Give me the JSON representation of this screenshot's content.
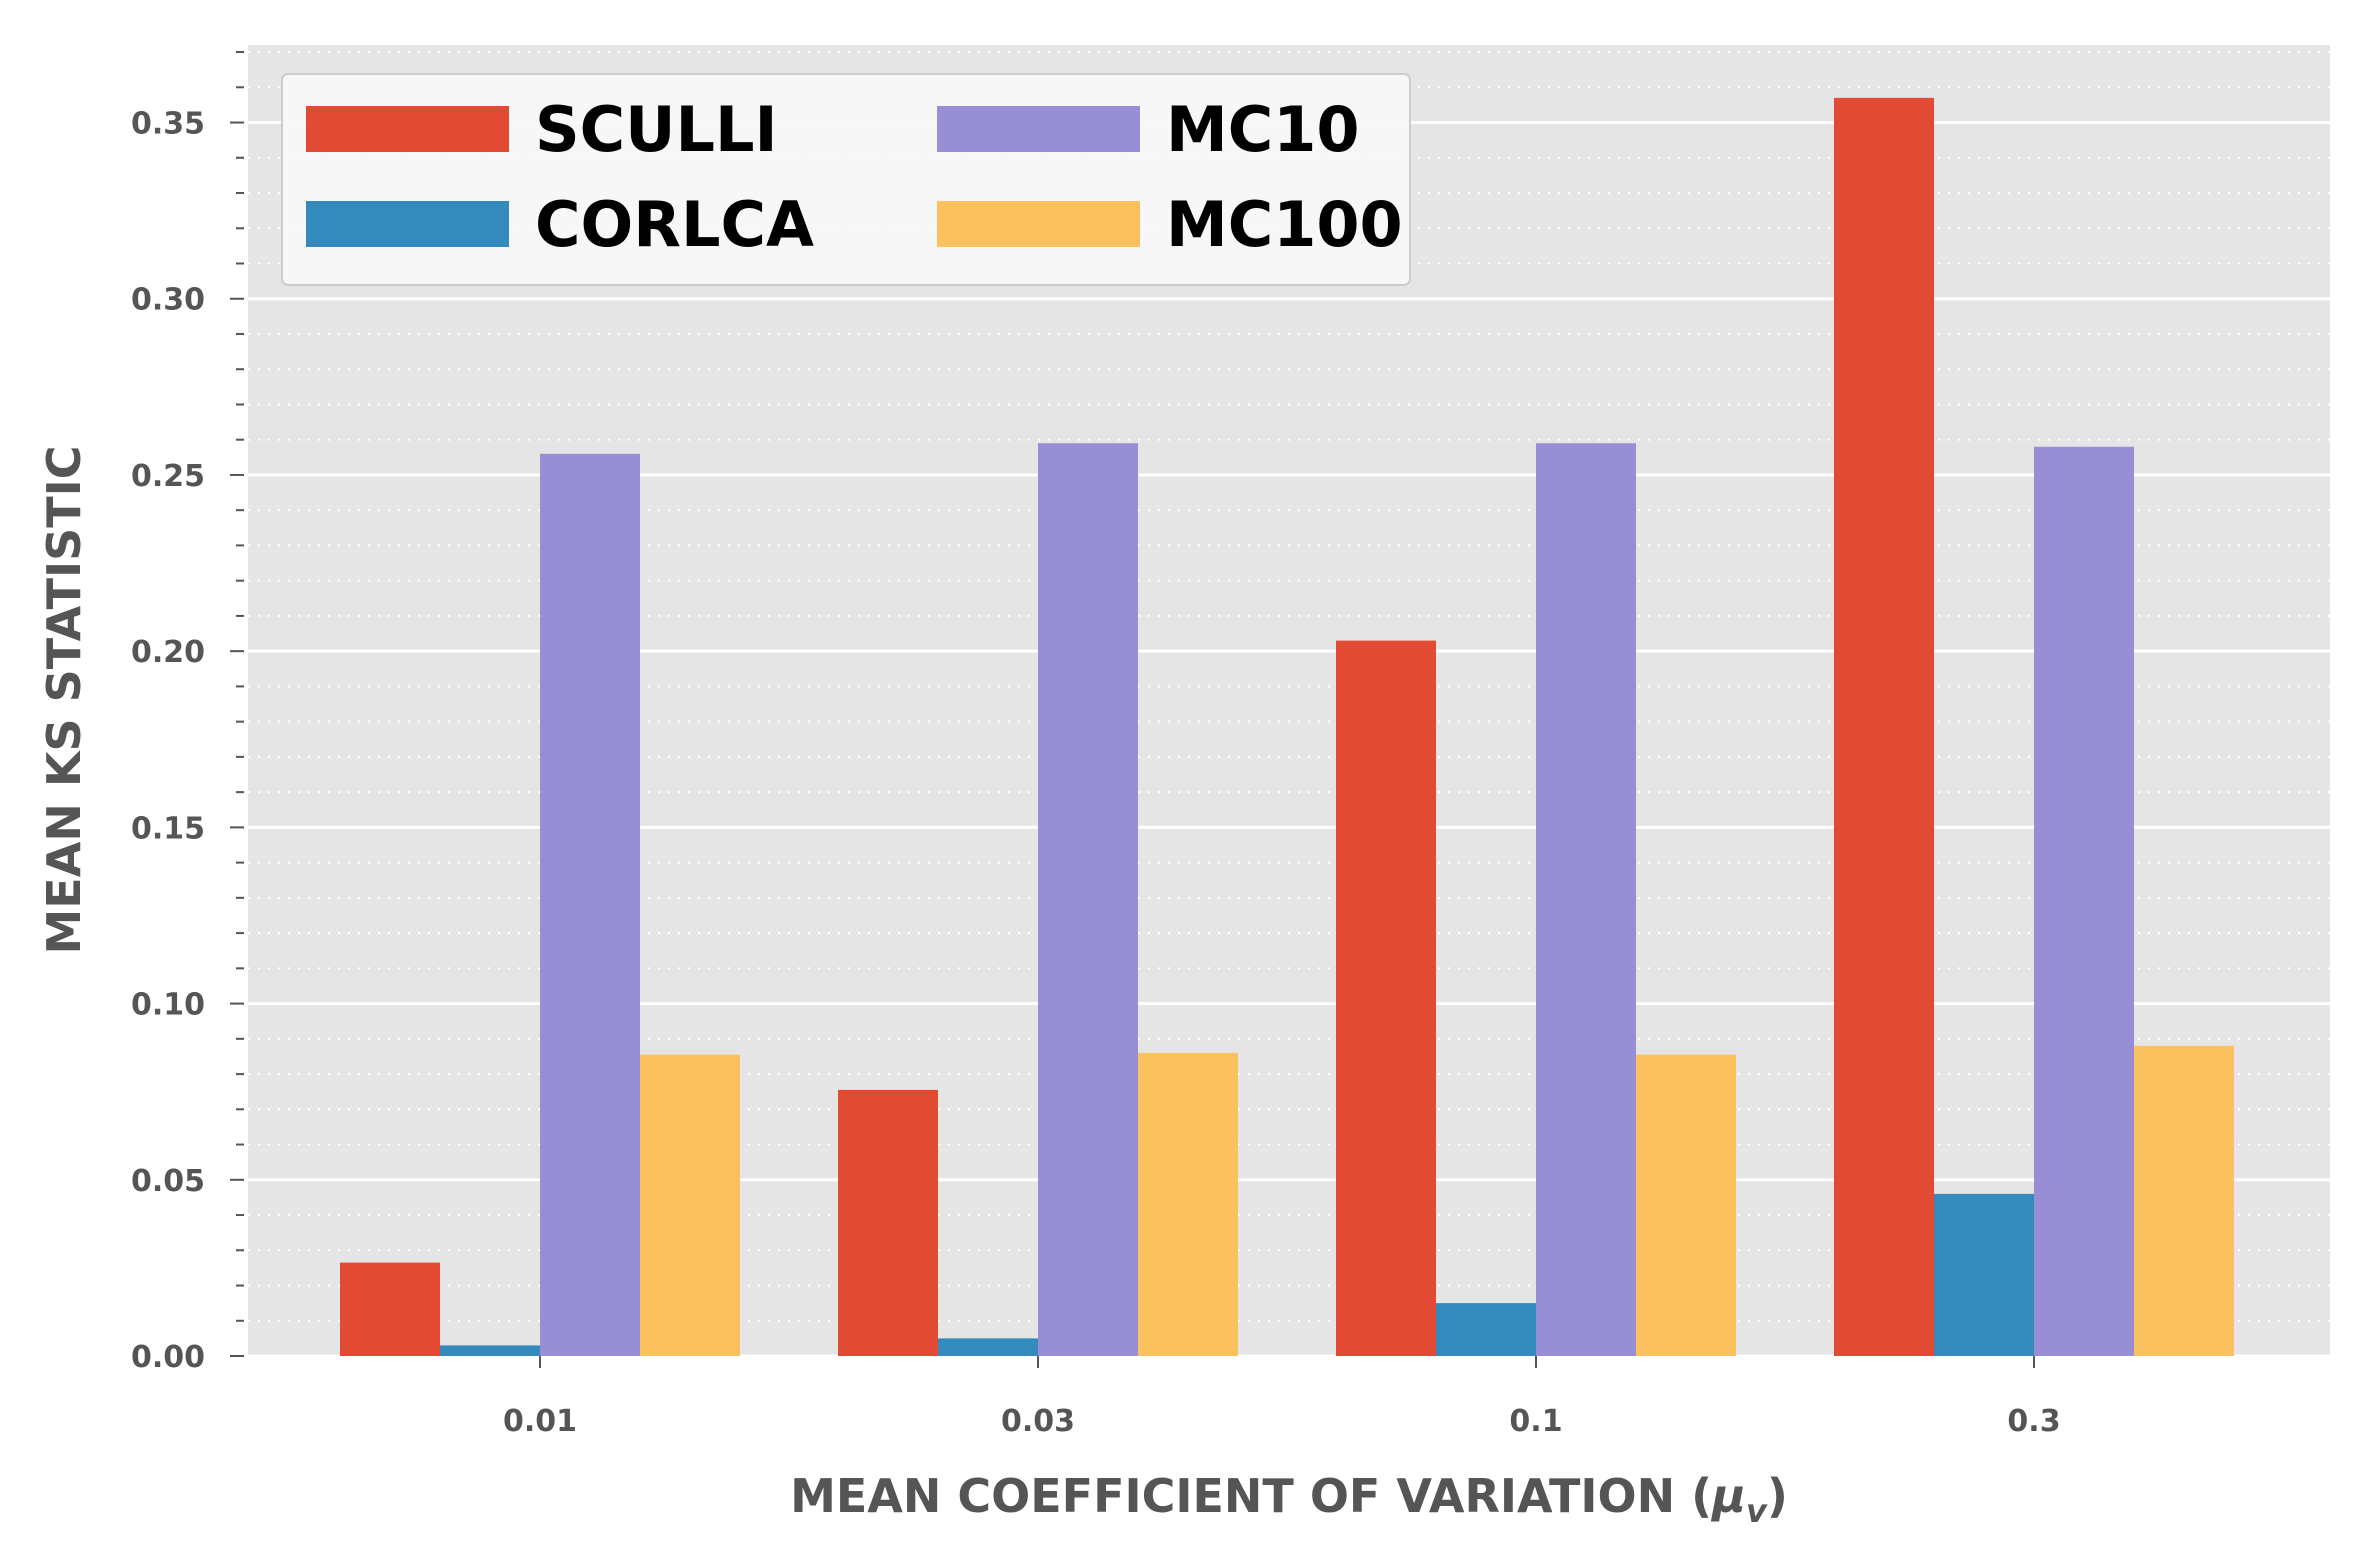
{
  "chart_data": {
    "type": "bar",
    "title": "",
    "xlabel": "MEAN COEFFICIENT OF VARIATION (",
    "xlabel_symbol": "μ",
    "xlabel_subscript": "v",
    "xlabel_close": ")",
    "ylabel": "MEAN KS STATISTIC",
    "categories": [
      "0.01",
      "0.03",
      "0.1",
      "0.3"
    ],
    "ylim": [
      0,
      0.372
    ],
    "yticks": [
      "0.00",
      "0.05",
      "0.10",
      "0.15",
      "0.20",
      "0.25",
      "0.30",
      "0.35"
    ],
    "ytick_values": [
      0,
      0.05,
      0.1,
      0.15,
      0.2,
      0.25,
      0.3,
      0.35
    ],
    "minor_tick_step": 0.01,
    "grid": true,
    "legend_position": "top-left",
    "background_color": "#E5E5E5",
    "series": [
      {
        "name": "SCULLI",
        "color": "#E24A33",
        "values": [
          0.0265,
          0.0755,
          0.203,
          0.357
        ]
      },
      {
        "name": "CORLCA",
        "color": "#348ABD",
        "values": [
          0.003,
          0.005,
          0.015,
          0.046
        ]
      },
      {
        "name": "MC10",
        "color": "#988ED5",
        "values": [
          0.256,
          0.259,
          0.259,
          0.258
        ]
      },
      {
        "name": "MC100",
        "color": "#FBC15E",
        "values": [
          0.0855,
          0.086,
          0.0855,
          0.088
        ]
      }
    ]
  }
}
